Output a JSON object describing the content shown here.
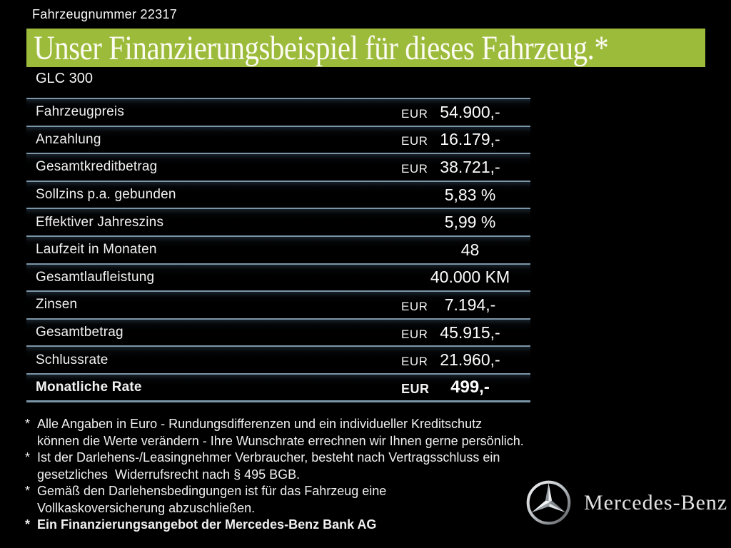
{
  "page": {
    "vehicle_number_label": "Fahrzeugnummer 22317",
    "title": "Unser Finanzierungsbeispiel für dieses Fahrzeug.*",
    "model": "GLC 300"
  },
  "colors": {
    "accent_green": "#9cbb3b",
    "background": "#000000",
    "separator_line": "#7b96a8",
    "text": "#ffffff"
  },
  "table": {
    "rows": [
      {
        "label": "Fahrzeugpreis",
        "currency": "EUR",
        "value": "54.900,-",
        "bold": false
      },
      {
        "label": "Anzahlung",
        "currency": "EUR",
        "value": "16.179,-",
        "bold": false
      },
      {
        "label": "Gesamtkreditbetrag",
        "currency": "EUR",
        "value": "38.721,-",
        "bold": false
      },
      {
        "label": "Sollzins p.a. gebunden",
        "currency": "",
        "value": "5,83 %",
        "bold": false
      },
      {
        "label": "Effektiver Jahreszins",
        "currency": "",
        "value": "5,99 %",
        "bold": false
      },
      {
        "label": "Laufzeit in Monaten",
        "currency": "",
        "value": "48",
        "bold": false
      },
      {
        "label": "Gesamtlaufleistung",
        "currency": "",
        "value": "40.000 KM",
        "bold": false
      },
      {
        "label": "Zinsen",
        "currency": "EUR",
        "value": "7.194,-",
        "bold": false
      },
      {
        "label": "Gesamtbetrag",
        "currency": "EUR",
        "value": "45.915,-",
        "bold": false
      },
      {
        "label": "Schlussrate",
        "currency": "EUR",
        "value": "21.960,-",
        "bold": false
      },
      {
        "label": "Monatliche Rate",
        "currency": "EUR",
        "value": "499,-",
        "bold": true
      }
    ]
  },
  "footnotes": [
    {
      "marker": "*",
      "bold": false,
      "lines": [
        "Alle Angaben in Euro - Rundungsdifferenzen und ein individueller Kreditschutz",
        "können die Werte verändern - Ihre Wunschrate errechnen wir Ihnen gerne persönlich."
      ]
    },
    {
      "marker": "*",
      "bold": false,
      "lines": [
        "Ist der Darlehens-/Leasingnehmer Verbraucher, besteht nach Vertragsschluss ein",
        "gesetzliches  Widerrufsrecht nach § 495 BGB."
      ]
    },
    {
      "marker": "*",
      "bold": false,
      "lines": [
        "Gemäß den Darlehensbedingungen ist für das Fahrzeug eine",
        "Vollkaskoversicherung abzuschließen."
      ]
    },
    {
      "marker": "*",
      "bold": true,
      "lines": [
        "Ein Finanzierungsangebot der Mercedes-Benz Bank AG"
      ]
    }
  ],
  "brand": {
    "logo_icon": "mercedes-star-icon",
    "wordmark": "Mercedes-Benz"
  }
}
